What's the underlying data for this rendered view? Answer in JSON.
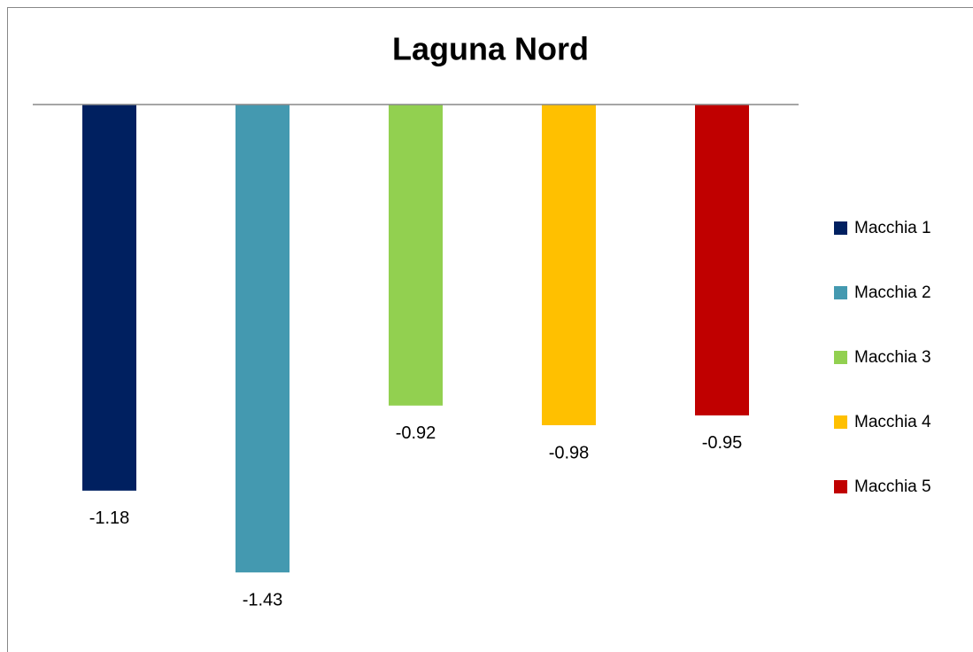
{
  "chart_data": {
    "type": "bar",
    "title": "Laguna Nord",
    "categories": [
      null
    ],
    "series": [
      {
        "name": "Macchia 1",
        "color": "#002060",
        "values": [
          -1.18
        ]
      },
      {
        "name": "Macchia 2",
        "color": "#4499b0",
        "values": [
          -1.43
        ]
      },
      {
        "name": "Macchia 3",
        "color": "#92d050",
        "values": [
          -0.92
        ]
      },
      {
        "name": "Macchia 4",
        "color": "#ffc000",
        "values": [
          -0.98
        ]
      },
      {
        "name": "Macchia 5",
        "color": "#c00000",
        "values": [
          -0.95
        ]
      }
    ],
    "ylim": [
      -1.6,
      0
    ],
    "grid": false,
    "legend": "right"
  }
}
